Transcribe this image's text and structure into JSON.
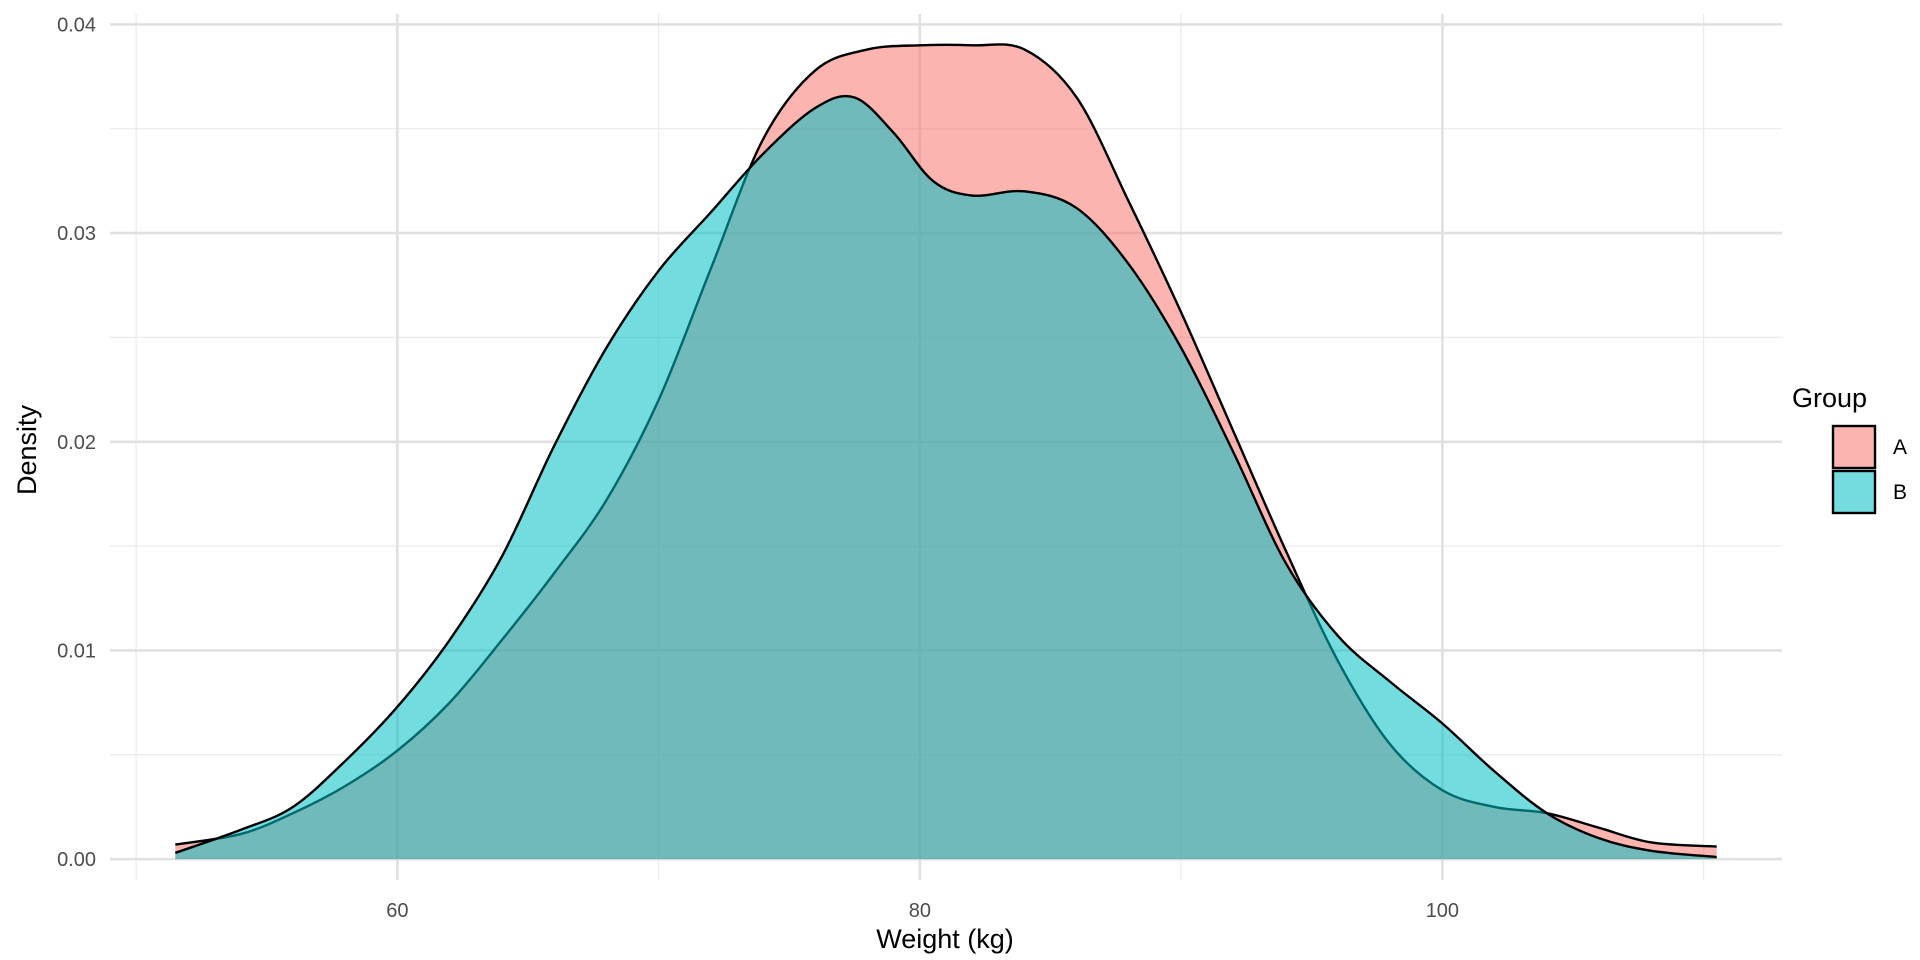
{
  "chart_data": {
    "type": "area",
    "subtype": "density",
    "title": "",
    "xlabel": "Weight (kg)",
    "ylabel": "Density",
    "xlim": [
      49,
      113
    ],
    "ylim": [
      -0.001,
      0.0405
    ],
    "x_ticks": [
      60,
      80,
      100
    ],
    "x_tick_labels": [
      "60",
      "80",
      "100"
    ],
    "x_minor_ticks": [
      50,
      70,
      90,
      110
    ],
    "y_ticks": [
      0,
      0.01,
      0.02,
      0.03,
      0.04
    ],
    "y_tick_labels": [
      "0.00",
      "0.01",
      "0.02",
      "0.03",
      "0.04"
    ],
    "y_minor_ticks": [
      0.005,
      0.015,
      0.025,
      0.035
    ],
    "grid": true,
    "legend": {
      "title": "Group",
      "position": "right"
    },
    "fill_opacity": 0.55,
    "series": [
      {
        "name": "A",
        "color": "#F8766D",
        "x": [
          51.5,
          54,
          56,
          58,
          60,
          62,
          64,
          66,
          68,
          70,
          72,
          74,
          76,
          78,
          80,
          82,
          84,
          86,
          88,
          90,
          92,
          94,
          96,
          98,
          100,
          102,
          104,
          106,
          108,
          110.5
        ],
        "y": [
          0.0007,
          0.0012,
          0.0022,
          0.0035,
          0.0052,
          0.0075,
          0.0105,
          0.0137,
          0.0172,
          0.022,
          0.0283,
          0.0345,
          0.0378,
          0.0388,
          0.039,
          0.039,
          0.0388,
          0.0365,
          0.0315,
          0.0262,
          0.0205,
          0.0148,
          0.0095,
          0.0055,
          0.0033,
          0.0025,
          0.0022,
          0.0015,
          0.0008,
          0.0006
        ]
      },
      {
        "name": "B",
        "color": "#00BFC4",
        "x": [
          51.5,
          54,
          56,
          58,
          60,
          62,
          64,
          66,
          68,
          70,
          72,
          74,
          76,
          77.5,
          79,
          80.5,
          82,
          84,
          86,
          88,
          90,
          92,
          94,
          96,
          98,
          100,
          102,
          104,
          106,
          108,
          110.5
        ],
        "y": [
          0.0003,
          0.0014,
          0.0025,
          0.0047,
          0.0073,
          0.0105,
          0.0145,
          0.0198,
          0.0245,
          0.0282,
          0.031,
          0.0338,
          0.036,
          0.0365,
          0.0348,
          0.0325,
          0.0318,
          0.032,
          0.0312,
          0.0285,
          0.0245,
          0.0195,
          0.0142,
          0.0107,
          0.0085,
          0.0065,
          0.0042,
          0.0022,
          0.001,
          0.0004,
          0.0001
        ]
      }
    ]
  }
}
